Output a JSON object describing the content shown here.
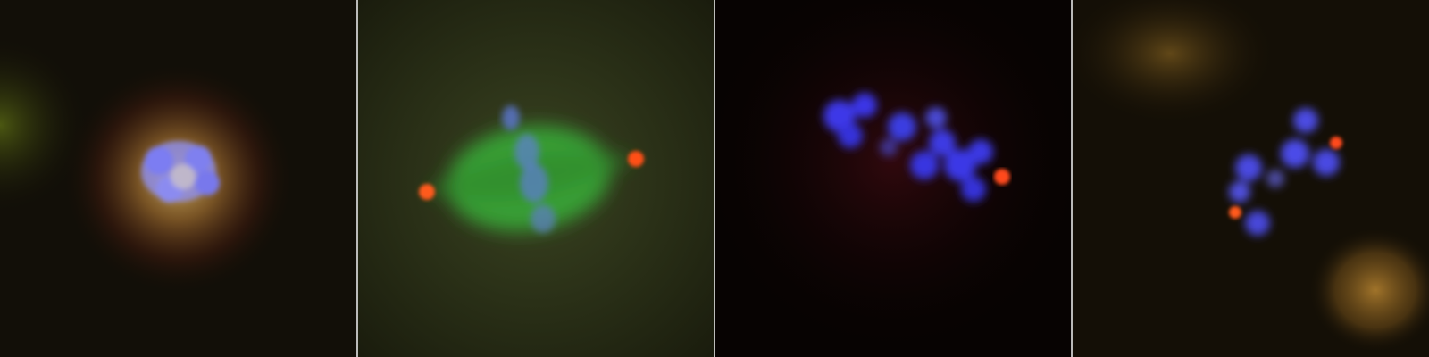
{
  "figure": {
    "panel_count": 4,
    "panels": [
      {
        "id": "panel-1",
        "background": "#120f08",
        "channels": [
          "blue",
          "green",
          "red"
        ]
      },
      {
        "id": "panel-2",
        "background": "#1d1f0f",
        "channels": [
          "blue",
          "green",
          "red"
        ]
      },
      {
        "id": "panel-3",
        "background": "#070302",
        "channels": [
          "blue",
          "red"
        ]
      },
      {
        "id": "panel-4",
        "background": "#140f06",
        "channels": [
          "blue",
          "green",
          "red"
        ]
      }
    ],
    "colors": {
      "dna_blue": "#4b4cf0",
      "spindle_green": "#3ea33a",
      "centrosome_red": "#ff4a1c",
      "halo_yellow": "#c79a3f",
      "separator": "#d8d8d8"
    }
  }
}
